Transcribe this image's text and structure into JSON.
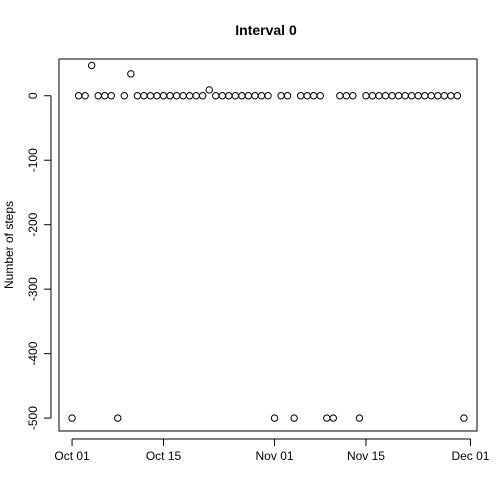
{
  "chart_data": {
    "type": "scatter",
    "title": "Interval 0",
    "xlabel": "",
    "ylabel": "Number of steps",
    "x_type": "date",
    "x_ticks": [
      {
        "date": "2012-10-01",
        "label": "Oct 01"
      },
      {
        "date": "2012-10-15",
        "label": "Oct 15"
      },
      {
        "date": "2012-11-01",
        "label": "Nov 01"
      },
      {
        "date": "2012-11-15",
        "label": "Nov 15"
      },
      {
        "date": "2012-12-01",
        "label": "Dec 01"
      }
    ],
    "y_ticks": [
      0,
      -100,
      -200,
      -300,
      -400,
      -500
    ],
    "ylim": [
      -520,
      57
    ],
    "xlim": [
      "2012-09-29",
      "2012-12-02"
    ],
    "grid": false,
    "legend": "none",
    "points": [
      {
        "x": "2012-10-01",
        "y": -500
      },
      {
        "x": "2012-10-02",
        "y": 0
      },
      {
        "x": "2012-10-03",
        "y": 0
      },
      {
        "x": "2012-10-04",
        "y": 47
      },
      {
        "x": "2012-10-05",
        "y": 0
      },
      {
        "x": "2012-10-06",
        "y": 0
      },
      {
        "x": "2012-10-07",
        "y": 0
      },
      {
        "x": "2012-10-08",
        "y": -500
      },
      {
        "x": "2012-10-09",
        "y": 0
      },
      {
        "x": "2012-10-10",
        "y": 34
      },
      {
        "x": "2012-10-11",
        "y": 0
      },
      {
        "x": "2012-10-12",
        "y": 0
      },
      {
        "x": "2012-10-13",
        "y": 0
      },
      {
        "x": "2012-10-14",
        "y": 0
      },
      {
        "x": "2012-10-15",
        "y": 0
      },
      {
        "x": "2012-10-16",
        "y": 0
      },
      {
        "x": "2012-10-17",
        "y": 0
      },
      {
        "x": "2012-10-18",
        "y": 0
      },
      {
        "x": "2012-10-19",
        "y": 0
      },
      {
        "x": "2012-10-20",
        "y": 0
      },
      {
        "x": "2012-10-21",
        "y": 0
      },
      {
        "x": "2012-10-22",
        "y": 9
      },
      {
        "x": "2012-10-23",
        "y": 0
      },
      {
        "x": "2012-10-24",
        "y": 0
      },
      {
        "x": "2012-10-25",
        "y": 0
      },
      {
        "x": "2012-10-26",
        "y": 0
      },
      {
        "x": "2012-10-27",
        "y": 0
      },
      {
        "x": "2012-10-28",
        "y": 0
      },
      {
        "x": "2012-10-29",
        "y": 0
      },
      {
        "x": "2012-10-30",
        "y": 0
      },
      {
        "x": "2012-10-31",
        "y": 0
      },
      {
        "x": "2012-11-01",
        "y": -500
      },
      {
        "x": "2012-11-02",
        "y": 0
      },
      {
        "x": "2012-11-03",
        "y": 0
      },
      {
        "x": "2012-11-04",
        "y": -500
      },
      {
        "x": "2012-11-05",
        "y": 0
      },
      {
        "x": "2012-11-06",
        "y": 0
      },
      {
        "x": "2012-11-07",
        "y": 0
      },
      {
        "x": "2012-11-08",
        "y": 0
      },
      {
        "x": "2012-11-09",
        "y": -500
      },
      {
        "x": "2012-11-10",
        "y": -500
      },
      {
        "x": "2012-11-11",
        "y": 0
      },
      {
        "x": "2012-11-12",
        "y": 0
      },
      {
        "x": "2012-11-13",
        "y": 0
      },
      {
        "x": "2012-11-14",
        "y": -500
      },
      {
        "x": "2012-11-15",
        "y": 0
      },
      {
        "x": "2012-11-16",
        "y": 0
      },
      {
        "x": "2012-11-17",
        "y": 0
      },
      {
        "x": "2012-11-18",
        "y": 0
      },
      {
        "x": "2012-11-19",
        "y": 0
      },
      {
        "x": "2012-11-20",
        "y": 0
      },
      {
        "x": "2012-11-21",
        "y": 0
      },
      {
        "x": "2012-11-22",
        "y": 0
      },
      {
        "x": "2012-11-23",
        "y": 0
      },
      {
        "x": "2012-11-24",
        "y": 0
      },
      {
        "x": "2012-11-25",
        "y": 0
      },
      {
        "x": "2012-11-26",
        "y": 0
      },
      {
        "x": "2012-11-27",
        "y": 0
      },
      {
        "x": "2012-11-28",
        "y": 0
      },
      {
        "x": "2012-11-29",
        "y": 0
      },
      {
        "x": "2012-11-30",
        "y": -500
      }
    ]
  }
}
